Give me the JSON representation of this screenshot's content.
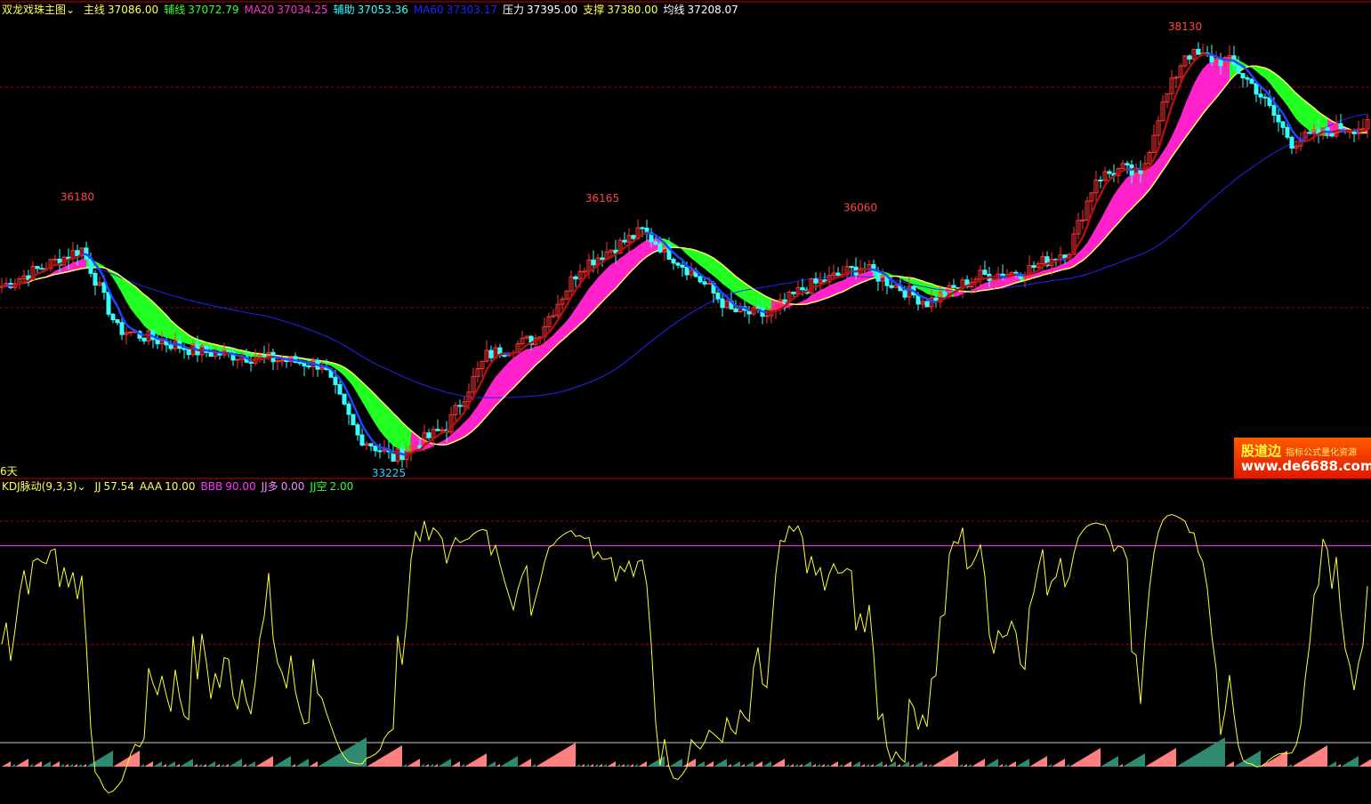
{
  "header": {
    "indicator_name": "双龙戏珠主图",
    "items": [
      {
        "label": "主线",
        "value": "37086.00",
        "color": "#ffff54"
      },
      {
        "label": "辅线",
        "value": "37072.79",
        "color": "#33ff33"
      },
      {
        "label": "MA20",
        "value": "37034.25",
        "color": "#ff33cc"
      },
      {
        "label": "辅助",
        "value": "37053.36",
        "color": "#33ffff"
      },
      {
        "label": "MA60",
        "value": "37303.17",
        "color": "#2222ff"
      },
      {
        "label": "压力",
        "value": "37395.00",
        "color": "#ffffff"
      },
      {
        "label": "支撑",
        "value": "37380.00",
        "color": "#ffff54"
      },
      {
        "label": "均线",
        "value": "37208.07",
        "color": "#ffffff"
      }
    ]
  },
  "days_label": "6天",
  "sub_header": {
    "indicator_name": "KDJ脉动(9,3,3)",
    "items": [
      {
        "label": "JJ",
        "value": "57.54",
        "color": "#ffff54"
      },
      {
        "label": "AAA",
        "value": "10.00",
        "color": "#ffff54"
      },
      {
        "label": "BBB",
        "value": "90.00",
        "color": "#ff33ff"
      },
      {
        "label": "JJ多",
        "value": "0.00",
        "color": "#ff88ff"
      },
      {
        "label": "JJ空",
        "value": "2.00",
        "color": "#33ff33"
      }
    ]
  },
  "ad": {
    "brand": "股道边",
    "tagline": "指标公式量化资源",
    "url": "www.de6688.com"
  },
  "chart_data": {
    "type": "candlestick",
    "price_range": [
      33225,
      38130
    ],
    "anchors": [
      [
        0,
        35261
      ],
      [
        18,
        35690
      ],
      [
        26,
        34773
      ],
      [
        44,
        34519
      ],
      [
        72,
        34366
      ],
      [
        80,
        33552
      ],
      [
        88,
        33298
      ],
      [
        100,
        33654
      ],
      [
        109,
        34468
      ],
      [
        120,
        34671
      ],
      [
        130,
        35485
      ],
      [
        144,
        35892
      ],
      [
        156,
        35383
      ],
      [
        164,
        34977
      ],
      [
        172,
        34926
      ],
      [
        180,
        35231
      ],
      [
        193,
        35485
      ],
      [
        208,
        35078
      ],
      [
        220,
        35383
      ],
      [
        230,
        35434
      ],
      [
        240,
        35688
      ],
      [
        246,
        36502
      ],
      [
        252,
        36604
      ],
      [
        256,
        36502
      ],
      [
        260,
        37214
      ],
      [
        266,
        37926
      ],
      [
        276,
        37825
      ],
      [
        282,
        37520
      ],
      [
        290,
        36909
      ],
      [
        300,
        37061
      ],
      [
        307,
        37092
      ]
    ],
    "peak_labels": [
      {
        "bar": 17,
        "price": 36180,
        "text": "36180"
      },
      {
        "bar": 135,
        "price": 36165,
        "text": "36165"
      },
      {
        "bar": 193,
        "price": 36060,
        "text": "36060"
      },
      {
        "bar": 266,
        "price": 38130,
        "text": "38130"
      },
      {
        "bar": 87,
        "price": 33225,
        "text": "33225",
        "below": true
      }
    ],
    "levels": [
      37540,
      35017
    ],
    "colors": {
      "up": "#ff3333",
      "down": "#33ffff",
      "ribbon_up": "#ff22cc",
      "ribbon_down": "#22ff22",
      "ma60": "#2222ff"
    },
    "kdj": {
      "params": [
        9,
        3,
        3
      ],
      "AAA": 10,
      "BBB": 90,
      "range": [
        -15,
        115
      ]
    }
  }
}
